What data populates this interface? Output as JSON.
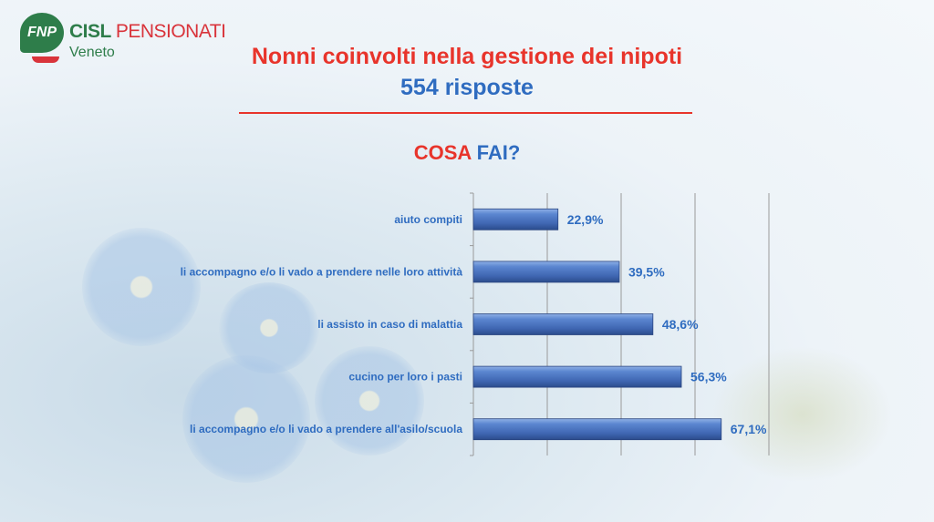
{
  "logo": {
    "fnp": "FNP",
    "cisl": "CISL",
    "pensionati": "PENSIONATI",
    "region": "Veneto"
  },
  "header": {
    "title": "Nonni coinvolti nella gestione dei nipoti",
    "subtitle": "554 risposte"
  },
  "question": {
    "part1": "COSA",
    "part2": "FAI?"
  },
  "colors": {
    "bar": "#4a74c4",
    "title": "#e8342b",
    "accent": "#2f6cc0",
    "logo_green": "#2e7d4a"
  },
  "chart_data": {
    "type": "bar",
    "orientation": "horizontal",
    "categories": [
      "aiuto compiti",
      "li accompagno e/o li vado a prendere nelle loro attività",
      "li assisto in caso di malattia",
      "cucino per loro i pasti",
      "li accompagno e/o li vado a prendere all'asilo/scuola"
    ],
    "values": [
      22.9,
      39.5,
      48.6,
      56.3,
      67.1
    ],
    "labels": [
      "22,9%",
      "39,5%",
      "48,6%",
      "56,3%",
      "67,1%"
    ],
    "xlim": [
      0,
      80
    ],
    "grid": true,
    "unit": "%"
  }
}
